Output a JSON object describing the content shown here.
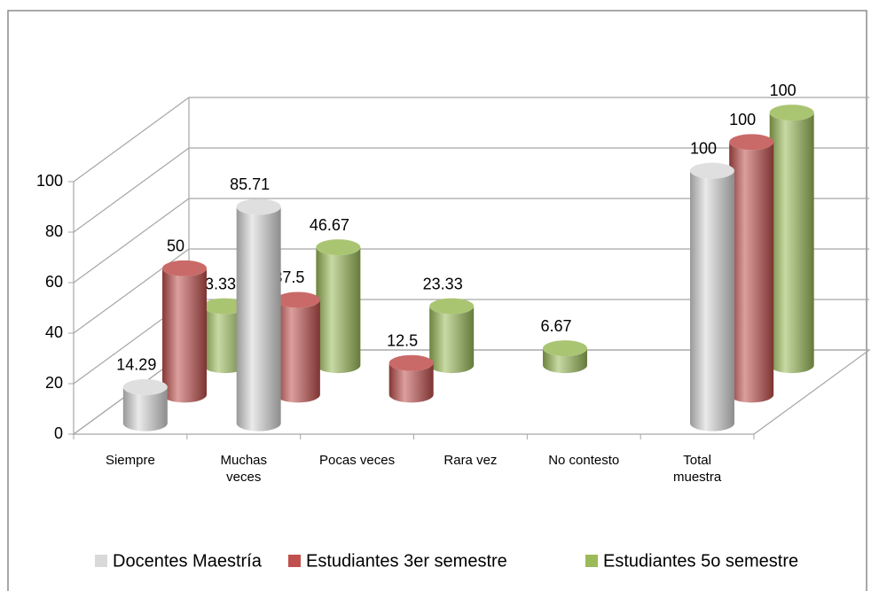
{
  "chart_data": {
    "type": "bar3d",
    "categories": [
      "Siempre",
      "Muchas veces",
      "Pocas veces",
      "Rara vez",
      "No contesto",
      "Total muestra"
    ],
    "series": [
      {
        "name": "Docentes Maestría",
        "color": "#d9d9d9",
        "values": [
          14.29,
          85.71,
          null,
          null,
          null,
          100
        ]
      },
      {
        "name": "Estudiantes 3er semestre",
        "color": "#c0504d",
        "values": [
          50,
          37.5,
          12.5,
          null,
          null,
          100
        ]
      },
      {
        "name": "Estudiantes 5o semestre",
        "color": "#9bbb59",
        "values": [
          23.33,
          46.67,
          23.33,
          6.67,
          null,
          100
        ]
      }
    ],
    "ylim": [
      0,
      100
    ],
    "yticks": [
      0,
      20,
      40,
      60,
      80,
      100
    ],
    "grid": true,
    "legend": "bottom"
  }
}
